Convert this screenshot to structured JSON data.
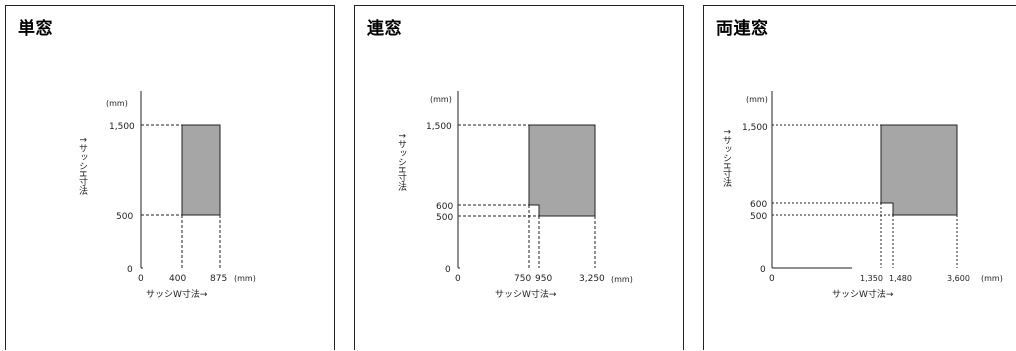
{
  "panels": [
    {
      "title": "単窓",
      "y_unit": "(mm)",
      "x_unit": "(mm)",
      "y_axis_label": "↑サッシH寸法",
      "x_axis_label": "サッシW寸法→",
      "y_ticks": [
        "1,500",
        "500",
        "0"
      ],
      "x_ticks": [
        "0",
        "400",
        "875"
      ]
    },
    {
      "title": "連窓",
      "y_unit": "(mm)",
      "x_unit": "(mm)",
      "y_axis_label": "↑サッシH寸法",
      "x_axis_label": "サッシW寸法→",
      "y_ticks": [
        "1,500",
        "600",
        "500",
        "0"
      ],
      "x_ticks": [
        "0",
        "750",
        "950",
        "3,250"
      ]
    },
    {
      "title": "両連窓",
      "y_unit": "(mm)",
      "x_unit": "(mm)",
      "y_axis_label": "↑サッシH寸法",
      "x_axis_label": "サッシW寸法→",
      "y_ticks": [
        "1,500",
        "600",
        "500",
        "0"
      ],
      "x_ticks": [
        "0",
        "1,350",
        "1,480",
        "3,600"
      ]
    }
  ],
  "colors": {
    "region_fill": "#a6a6a6",
    "line": "#222222"
  }
}
